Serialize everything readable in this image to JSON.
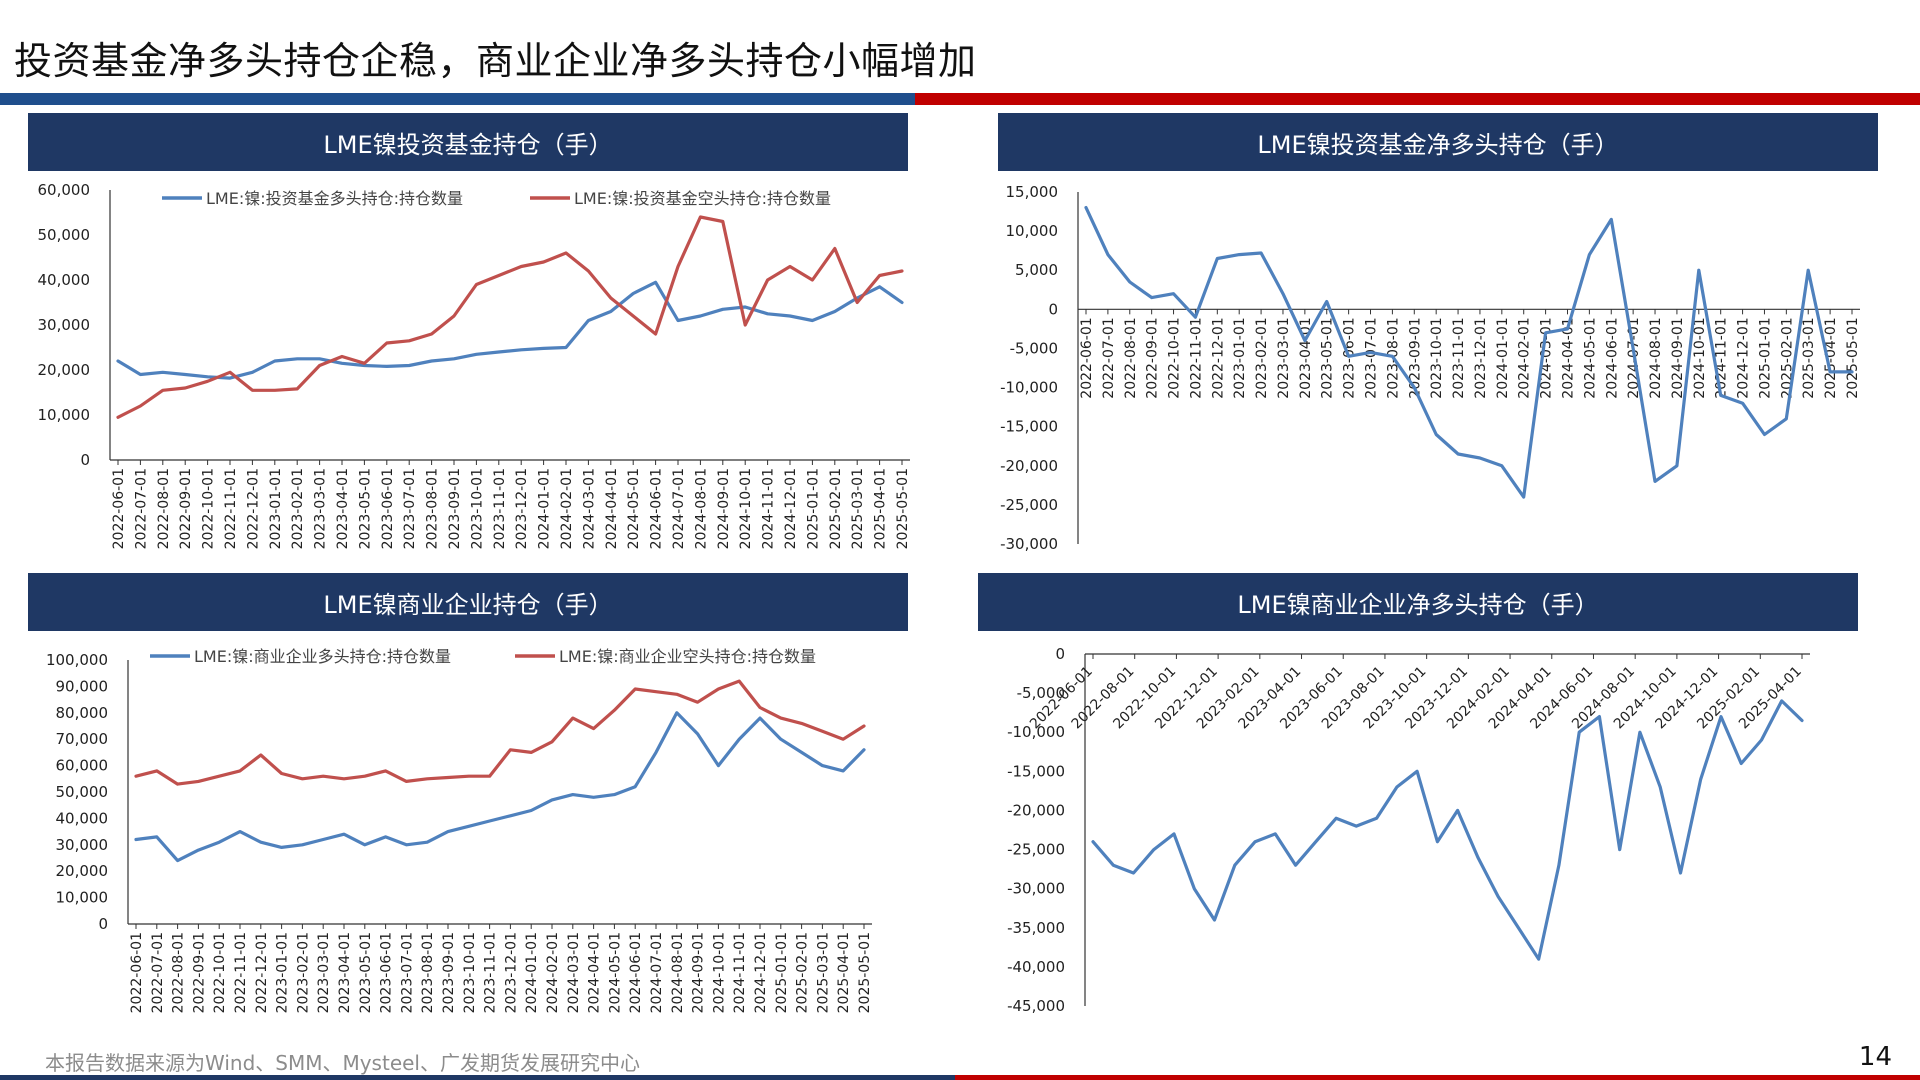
{
  "slide": {
    "title": "投资基金净多头持仓企稳，商业企业净多头持仓小幅增加",
    "footer": "本报告数据来源为Wind、SMM、Mysteel、广发期货发展研究中心",
    "page": "14"
  },
  "colors": {
    "blue": "#4f81bd",
    "red": "#c0504d",
    "header_bg": "#1f3864"
  },
  "chart_data": [
    {
      "id": "tl",
      "type": "line",
      "title": "LME镍投资基金持仓（手）",
      "ylim": [
        0,
        60000
      ],
      "yticks": [
        0,
        10000,
        20000,
        30000,
        40000,
        50000,
        60000
      ],
      "ytick_labels": [
        "0",
        "10,000",
        "20,000",
        "30,000",
        "40,000",
        "50,000",
        "60,000"
      ],
      "x_labels": [
        "2022-06-01",
        "2022-07-01",
        "2022-08-01",
        "2022-09-01",
        "2022-10-01",
        "2022-11-01",
        "2022-12-01",
        "2023-01-01",
        "2023-02-01",
        "2023-03-01",
        "2023-04-01",
        "2023-05-01",
        "2023-06-01",
        "2023-07-01",
        "2023-08-01",
        "2023-09-01",
        "2023-10-01",
        "2023-11-01",
        "2023-12-01",
        "2024-01-01",
        "2024-02-01",
        "2024-03-01",
        "2024-04-01",
        "2024-05-01",
        "2024-06-01",
        "2024-07-01",
        "2024-08-01",
        "2024-09-01",
        "2024-10-01",
        "2024-11-01",
        "2024-12-01",
        "2025-01-01",
        "2025-02-01",
        "2025-03-01",
        "2025-04-01",
        "2025-05-01"
      ],
      "series": [
        {
          "name": "LME:镍:投资基金多头持仓:持仓数量",
          "color": "#4f81bd",
          "values": [
            22000,
            19000,
            19500,
            19000,
            18500,
            18200,
            19500,
            22000,
            22500,
            22500,
            21500,
            21000,
            20800,
            21000,
            22000,
            22500,
            23500,
            24000,
            24500,
            24800,
            25000,
            31000,
            33000,
            37000,
            39500,
            31000,
            32000,
            33500,
            34000,
            32500,
            32000,
            31000,
            33000,
            36000,
            38500,
            35000
          ]
        },
        {
          "name": "LME:镍:投资基金空头持仓:持仓数量",
          "color": "#c0504d",
          "values": [
            9500,
            12000,
            15500,
            16000,
            17500,
            19500,
            15500,
            15500,
            15800,
            21000,
            23000,
            21500,
            26000,
            26500,
            28000,
            32000,
            39000,
            41000,
            43000,
            44000,
            46000,
            42000,
            36000,
            32000,
            28000,
            43000,
            54000,
            53000,
            30000,
            40000,
            43000,
            40000,
            47000,
            35000,
            41000,
            42000
          ]
        }
      ]
    },
    {
      "id": "tr",
      "type": "line",
      "title": "LME镍投资基金净多头持仓（手）",
      "ylim": [
        -30000,
        15000
      ],
      "yticks": [
        15000,
        10000,
        5000,
        0,
        -5000,
        -10000,
        -15000,
        -20000,
        -25000,
        -30000
      ],
      "ytick_labels": [
        "15,000",
        "10,000",
        "5,000",
        "0",
        "-5,000",
        "-10,000",
        "-15,000",
        "-20,000",
        "-25,000",
        "-30,000"
      ],
      "x_labels": [
        "2022-06-01",
        "2022-07-01",
        "2022-08-01",
        "2022-09-01",
        "2022-10-01",
        "2022-11-01",
        "2022-12-01",
        "2023-01-01",
        "2023-02-01",
        "2023-03-01",
        "2023-04-01",
        "2023-05-01",
        "2023-06-01",
        "2023-07-01",
        "2023-08-01",
        "2023-09-01",
        "2023-10-01",
        "2023-11-01",
        "2023-12-01",
        "2024-01-01",
        "2024-02-01",
        "2024-03-01",
        "2024-04-01",
        "2024-05-01",
        "2024-06-01",
        "2024-07-01",
        "2024-08-01",
        "2024-09-01",
        "2024-10-01",
        "2024-11-01",
        "2024-12-01",
        "2025-01-01",
        "2025-02-01",
        "2025-03-01",
        "2025-04-01",
        "2025-05-01"
      ],
      "series": [
        {
          "name": "",
          "color": "#4f81bd",
          "values": [
            13000,
            7000,
            3500,
            1500,
            2000,
            -1000,
            6500,
            7000,
            7200,
            2000,
            -4000,
            1000,
            -6000,
            -5500,
            -6000,
            -10000,
            -16000,
            -18500,
            -19000,
            -20000,
            -24000,
            -3000,
            -2500,
            7000,
            11500,
            -5000,
            -22000,
            -20000,
            5000,
            -11000,
            -12000,
            -16000,
            -14000,
            5000,
            -8000,
            -8000
          ]
        }
      ]
    },
    {
      "id": "bl",
      "type": "line",
      "title": "LME镍商业企业持仓（手）",
      "ylim": [
        0,
        100000
      ],
      "yticks": [
        0,
        10000,
        20000,
        30000,
        40000,
        50000,
        60000,
        70000,
        80000,
        90000,
        100000
      ],
      "ytick_labels": [
        "0",
        "10,000",
        "20,000",
        "30,000",
        "40,000",
        "50,000",
        "60,000",
        "70,000",
        "80,000",
        "90,000",
        "100,000"
      ],
      "x_labels": [
        "2022-06-01",
        "2022-07-01",
        "2022-08-01",
        "2022-09-01",
        "2022-10-01",
        "2022-11-01",
        "2022-12-01",
        "2023-01-01",
        "2023-02-01",
        "2023-03-01",
        "2023-04-01",
        "2023-05-01",
        "2023-06-01",
        "2023-07-01",
        "2023-08-01",
        "2023-09-01",
        "2023-10-01",
        "2023-11-01",
        "2023-12-01",
        "2024-01-01",
        "2024-02-01",
        "2024-03-01",
        "2024-04-01",
        "2024-05-01",
        "2024-06-01",
        "2024-07-01",
        "2024-08-01",
        "2024-09-01",
        "2024-10-01",
        "2024-11-01",
        "2024-12-01",
        "2025-01-01",
        "2025-02-01",
        "2025-03-01",
        "2025-04-01",
        "2025-05-01"
      ],
      "series": [
        {
          "name": "LME:镍:商业企业多头持仓:持仓数量",
          "color": "#4f81bd",
          "values": [
            32000,
            33000,
            24000,
            28000,
            31000,
            35000,
            31000,
            29000,
            30000,
            32000,
            34000,
            30000,
            33000,
            30000,
            31000,
            35000,
            37000,
            39000,
            41000,
            43000,
            47000,
            49000,
            48000,
            49000,
            52000,
            65000,
            80000,
            72000,
            60000,
            70000,
            78000,
            70000,
            65000,
            60000,
            58000,
            66000
          ]
        },
        {
          "name": "LME:镍:商业企业空头持仓:持仓数量",
          "color": "#c0504d",
          "values": [
            56000,
            58000,
            53000,
            54000,
            56000,
            58000,
            64000,
            57000,
            55000,
            56000,
            55000,
            56000,
            58000,
            54000,
            55000,
            55500,
            56000,
            56000,
            66000,
            65000,
            69000,
            78000,
            74000,
            81000,
            89000,
            88000,
            87000,
            84000,
            89000,
            92000,
            82000,
            78000,
            76000,
            73000,
            70000,
            75000
          ]
        }
      ]
    },
    {
      "id": "br",
      "type": "line",
      "title": "LME镍商业企业净多头持仓（手）",
      "ylim": [
        -45000,
        0
      ],
      "yticks": [
        0,
        -5000,
        -10000,
        -15000,
        -20000,
        -25000,
        -30000,
        -35000,
        -40000,
        -45000
      ],
      "ytick_labels": [
        "0",
        "-5,000",
        "-10,000",
        "-15,000",
        "-20,000",
        "-25,000",
        "-30,000",
        "-35,000",
        "-40,000",
        "-45,000"
      ],
      "x_labels": [
        "2022-06-01",
        "2022-08-01",
        "2022-10-01",
        "2022-12-01",
        "2023-02-01",
        "2023-04-01",
        "2023-06-01",
        "2023-08-01",
        "2023-10-01",
        "2023-12-01",
        "2024-02-01",
        "2024-04-01",
        "2024-06-01",
        "2024-08-01",
        "2024-10-01",
        "2024-12-01",
        "2025-02-01",
        "2025-04-01"
      ],
      "series": [
        {
          "name": "",
          "color": "#4f81bd",
          "values": [
            -24000,
            -27000,
            -28000,
            -25000,
            -23000,
            -30000,
            -34000,
            -27000,
            -24000,
            -23000,
            -27000,
            -24000,
            -21000,
            -22000,
            -21000,
            -17000,
            -15000,
            -24000,
            -20000,
            -26000,
            -31000,
            -35000,
            -39000,
            -27000,
            -10000,
            -8000,
            -25000,
            -10000,
            -17000,
            -28000,
            -16000,
            -8000,
            -14000,
            -11000,
            -6000,
            -8500
          ]
        }
      ]
    }
  ]
}
